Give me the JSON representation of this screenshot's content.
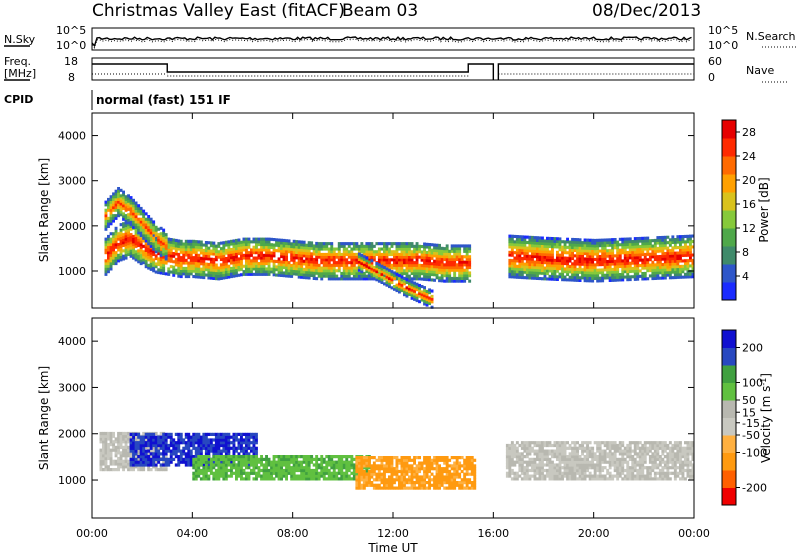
{
  "header": {
    "title": "Christmas Valley East (fitACF)",
    "beam": "Beam 03",
    "date": "08/Dec/2013"
  },
  "noise_panel": {
    "left_label": "N.Sky",
    "right_label": "N.Search",
    "left_ticks": [
      "10^5",
      "10^0"
    ],
    "right_ticks": [
      "10^5",
      "10^0"
    ]
  },
  "freq_panel": {
    "left_label_1": "Freq.",
    "left_label_2": "[MHz]",
    "right_label": "Nave",
    "left_ticks": [
      "18",
      "8"
    ],
    "right_ticks": [
      "60",
      "0"
    ]
  },
  "cpid": {
    "label": "CPID",
    "mode": "normal (fast) 151 IF"
  },
  "colors": {
    "power_scale": [
      "#1a2bff",
      "#2e56c9",
      "#3f8a6a",
      "#4fa84a",
      "#86c93b",
      "#d9c21c",
      "#ffa000",
      "#ff6a00",
      "#ff2a00",
      "#e60000"
    ],
    "velocity_scale": [
      "#f00000",
      "#ff6000",
      "#ff9a10",
      "#ffb040",
      "#c8c8c0",
      "#b8b8b0",
      "#60c040",
      "#40a040",
      "#2848c0",
      "#1010d0"
    ],
    "ground_scatter": "#b8b8b0"
  },
  "chart_data": [
    {
      "type": "heatmap",
      "panel": "power",
      "ylabel": "Slant Range [km]",
      "xlabel": "Time UT",
      "x_ticks": [
        "00:00",
        "04:00",
        "08:00",
        "12:00",
        "16:00",
        "20:00",
        "00:00"
      ],
      "xlim_hours": [
        0,
        24
      ],
      "ylim_km": [
        180,
        4500
      ],
      "y_ticks": [
        1000,
        2000,
        3000,
        4000
      ],
      "colorbar_label": "Power [dB]",
      "colorbar_ticks": [
        4,
        8,
        12,
        16,
        20,
        24,
        28
      ],
      "colorbar_range": [
        0,
        30
      ],
      "data_gap_hours": [
        [
          16.0,
          16.2
        ]
      ],
      "echo_bands": [
        {
          "hours": [
            [
              0.5,
              1300
            ],
            [
              1.0,
              1600
            ],
            [
              1.5,
              1700
            ],
            [
              2.0,
              1500
            ],
            [
              2.5,
              1350
            ],
            [
              3.0,
              1300
            ],
            [
              3.5,
              1250
            ],
            [
              4.0,
              1250
            ],
            [
              5.0,
              1200
            ],
            [
              6.0,
              1300
            ],
            [
              7.0,
              1300
            ],
            [
              8.0,
              1250
            ],
            [
              9.0,
              1200
            ],
            [
              10.0,
              1200
            ],
            [
              11.0,
              1200
            ],
            [
              12.0,
              1200
            ],
            [
              13.0,
              1200
            ],
            [
              14.0,
              1150
            ],
            [
              15.0,
              1150
            ]
          ],
          "width_km": 400,
          "peak_db": 28
        },
        {
          "hours": [
            [
              0.5,
              2200
            ],
            [
              1.0,
              2500
            ],
            [
              1.5,
              2300
            ],
            [
              2.0,
              2000
            ],
            [
              2.5,
              1700
            ],
            [
              3.0,
              1500
            ]
          ],
          "width_km": 300,
          "peak_db": 24
        },
        {
          "hours": [
            [
              10.5,
              1200
            ],
            [
              11.5,
              900
            ],
            [
              12.5,
              600
            ],
            [
              13.5,
              350
            ]
          ],
          "width_km": 180,
          "peak_db": 26
        },
        {
          "hours": [
            [
              16.5,
              1300
            ],
            [
              18.0,
              1250
            ],
            [
              20.0,
              1200
            ],
            [
              22.0,
              1250
            ],
            [
              24.0,
              1300
            ]
          ],
          "width_km": 450,
          "peak_db": 28
        }
      ]
    },
    {
      "type": "heatmap",
      "panel": "velocity",
      "ylabel": "Slant Range [km]",
      "xlabel": "Time UT",
      "x_ticks": [
        "00:00",
        "04:00",
        "08:00",
        "12:00",
        "16:00",
        "20:00",
        "00:00"
      ],
      "xlim_hours": [
        0,
        24
      ],
      "ylim_km": [
        180,
        4500
      ],
      "y_ticks": [
        1000,
        2000,
        3000,
        4000
      ],
      "colorbar_label": "Velocity [m s^-1]",
      "colorbar_ticks": [
        -200,
        -100,
        -50,
        -15,
        15,
        50,
        100,
        200
      ],
      "colorbar_range": [
        -250,
        250
      ],
      "data_gap_hours": [
        [
          16.0,
          16.2
        ]
      ],
      "regions": [
        {
          "name": "ground scatter pre-midnight",
          "hours": [
            0.3,
            3.0
          ],
          "km": [
            1200,
            2000
          ],
          "velocity": 0
        },
        {
          "name": "blue arc",
          "hours": [
            1.5,
            6.5
          ],
          "km": [
            1300,
            2000
          ],
          "velocity": 200
        },
        {
          "name": "green band",
          "hours": [
            4.0,
            11.0
          ],
          "km": [
            1000,
            1500
          ],
          "velocity": 40
        },
        {
          "name": "orange band",
          "hours": [
            10.5,
            15.2
          ],
          "km": [
            800,
            1500
          ],
          "velocity": -60
        },
        {
          "name": "ground scatter post-noon",
          "hours": [
            16.5,
            24.0
          ],
          "km": [
            1000,
            1800
          ],
          "velocity": 0
        }
      ]
    }
  ],
  "axes_text": {
    "time_label": "Time UT",
    "power_label": "Power [dB]",
    "velocity_label": "Velocity",
    "velocity_units": "[m s",
    "velocity_units_sup": "-1",
    "velocity_units_end": "]"
  }
}
